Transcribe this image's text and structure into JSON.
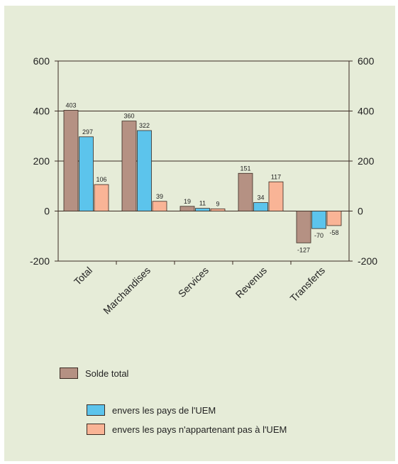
{
  "colors": {
    "panel": "#e6ecd8",
    "total": "#b59183",
    "uem": "#5cc4ec",
    "non_uem": "#f9b496",
    "axis": "#3a2a22"
  },
  "chart_data": {
    "type": "bar",
    "categories": [
      "Total",
      "Marchandises",
      "Services",
      "Revenus",
      "Transferts"
    ],
    "series": [
      {
        "name": "Solde total",
        "key": "total",
        "values": [
          403,
          360,
          19,
          151,
          -127
        ]
      },
      {
        "name": "envers les pays de l'UEM",
        "key": "uem",
        "values": [
          297,
          322,
          11,
          34,
          -70
        ]
      },
      {
        "name": "envers les pays n'appartenant pas à l'UEM",
        "key": "non_uem",
        "values": [
          106,
          39,
          9,
          117,
          -58
        ]
      }
    ],
    "ylim": [
      -200,
      600
    ],
    "yticks": [
      -200,
      0,
      200,
      400,
      600
    ],
    "ytick_labels": [
      "-200",
      "0",
      "200",
      "400",
      "600"
    ],
    "grid": "horizontal at 200 and 400",
    "secondary_y_axis": true,
    "legend_position": "bottom-left"
  }
}
